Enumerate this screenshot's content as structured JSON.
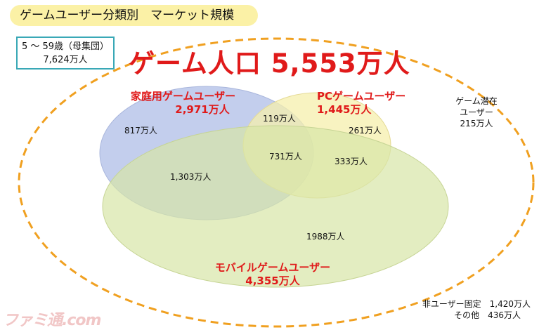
{
  "header": {
    "title": "ゲームユーザー分類別　マーケット規模"
  },
  "population_box": {
    "line1": "5 〜 59歳（母集団）",
    "line2": "7,624万人"
  },
  "headline": "ゲーム人口 5,553万人",
  "segments": {
    "console": {
      "name": "家庭用ゲームユーザー",
      "total": "2,971万人",
      "only": "817万人",
      "color": "#b9c6ea"
    },
    "pc": {
      "name": "PCゲームユーザー",
      "total": "1,445万人",
      "only": "261万人",
      "color": "#f6efac"
    },
    "mobile": {
      "name": "モバイルゲームユーザー",
      "total": "4,355万人",
      "only": "1988万人",
      "color": "#d7e5a6"
    }
  },
  "overlaps": {
    "console_pc": "119万人",
    "console_mobile": "1,303万人",
    "pc_mobile": "333万人",
    "all_three": "731万人"
  },
  "potential": {
    "line1": "ゲーム潜在",
    "line2": "ユーザー",
    "line3": "215万人"
  },
  "non_users": {
    "line1": "非ユーザー固定　1,420万人",
    "line2": "その他　436万人"
  },
  "watermark": "ファミ通.com",
  "colors": {
    "accent_red": "#e01a1a",
    "dashed_outline": "#f0a020",
    "box_border": "#39a8b6",
    "title_bg": "#fbf1a6"
  }
}
